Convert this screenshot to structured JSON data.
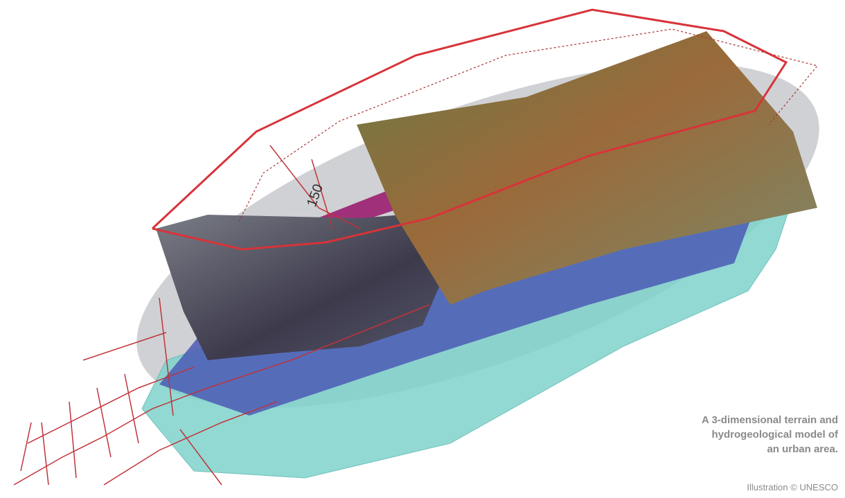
{
  "figure": {
    "contour_label": "150",
    "caption": [
      "A 3-dimensional terrain and",
      "hydrogeological model of",
      "an urban area."
    ],
    "credit": "Illustration © UNESCO"
  }
}
